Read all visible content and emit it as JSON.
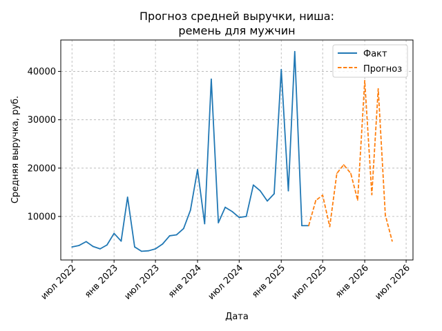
{
  "chart_data": {
    "type": "line",
    "title_line1": "Прогноз средней выручки, ниша:",
    "title_line2": "ремень для мужчин",
    "xlabel": "Дата",
    "ylabel": "Средняя выручка, руб.",
    "x_ticks": [
      {
        "date": "2022-07-01",
        "label": "июл 2022"
      },
      {
        "date": "2023-01-01",
        "label": "янв 2023"
      },
      {
        "date": "2023-07-01",
        "label": "июл 2023"
      },
      {
        "date": "2024-01-01",
        "label": "янв 2024"
      },
      {
        "date": "2024-07-01",
        "label": "июл 2024"
      },
      {
        "date": "2025-01-01",
        "label": "янв 2025"
      },
      {
        "date": "2025-07-01",
        "label": "июл 2025"
      },
      {
        "date": "2026-01-01",
        "label": "янв 2026"
      },
      {
        "date": "2026-07-01",
        "label": "июл 2026"
      }
    ],
    "y_ticks": [
      {
        "value": 10000,
        "label": "10000"
      },
      {
        "value": 20000,
        "label": "20000"
      },
      {
        "value": 30000,
        "label": "30000"
      },
      {
        "value": 40000,
        "label": "40000"
      }
    ],
    "xlim": [
      "2022-05-13",
      "2026-07-31"
    ],
    "ylim": [
      1000,
      46500
    ],
    "grid": true,
    "legend_position": "top-right",
    "series": [
      {
        "name": "Факт",
        "color": "#1f77b4",
        "style": "solid",
        "points": [
          {
            "x": "2022-07-01",
            "y": 3700
          },
          {
            "x": "2022-08-01",
            "y": 4000
          },
          {
            "x": "2022-09-01",
            "y": 4800
          },
          {
            "x": "2022-10-01",
            "y": 3800
          },
          {
            "x": "2022-11-01",
            "y": 3300
          },
          {
            "x": "2022-12-01",
            "y": 4100
          },
          {
            "x": "2023-01-01",
            "y": 6500
          },
          {
            "x": "2023-02-01",
            "y": 4900
          },
          {
            "x": "2023-03-01",
            "y": 14000
          },
          {
            "x": "2023-04-01",
            "y": 3700
          },
          {
            "x": "2023-05-01",
            "y": 2800
          },
          {
            "x": "2023-06-01",
            "y": 2900
          },
          {
            "x": "2023-07-01",
            "y": 3300
          },
          {
            "x": "2023-08-01",
            "y": 4300
          },
          {
            "x": "2023-09-01",
            "y": 6000
          },
          {
            "x": "2023-10-01",
            "y": 6200
          },
          {
            "x": "2023-11-01",
            "y": 7500
          },
          {
            "x": "2023-12-01",
            "y": 11300
          },
          {
            "x": "2024-01-01",
            "y": 19700
          },
          {
            "x": "2024-02-01",
            "y": 8500
          },
          {
            "x": "2024-03-01",
            "y": 38400
          },
          {
            "x": "2024-04-01",
            "y": 8700
          },
          {
            "x": "2024-05-01",
            "y": 11900
          },
          {
            "x": "2024-06-01",
            "y": 11000
          },
          {
            "x": "2024-07-01",
            "y": 9800
          },
          {
            "x": "2024-08-01",
            "y": 10000
          },
          {
            "x": "2024-09-01",
            "y": 16500
          },
          {
            "x": "2024-10-01",
            "y": 15300
          },
          {
            "x": "2024-11-01",
            "y": 13200
          },
          {
            "x": "2024-12-01",
            "y": 14700
          },
          {
            "x": "2025-01-01",
            "y": 40400
          },
          {
            "x": "2025-02-01",
            "y": 15300
          },
          {
            "x": "2025-03-01",
            "y": 44100
          },
          {
            "x": "2025-04-01",
            "y": 8100
          },
          {
            "x": "2025-05-01",
            "y": 8100
          }
        ]
      },
      {
        "name": "Прогноз",
        "color": "#ff7f0e",
        "style": "dashed",
        "points": [
          {
            "x": "2025-05-01",
            "y": 8100
          },
          {
            "x": "2025-06-01",
            "y": 13300
          },
          {
            "x": "2025-07-01",
            "y": 14400
          },
          {
            "x": "2025-08-01",
            "y": 7900
          },
          {
            "x": "2025-09-01",
            "y": 18900
          },
          {
            "x": "2025-10-01",
            "y": 20700
          },
          {
            "x": "2025-11-01",
            "y": 18900
          },
          {
            "x": "2025-12-01",
            "y": 13400
          },
          {
            "x": "2026-01-01",
            "y": 38100
          },
          {
            "x": "2026-02-01",
            "y": 14500
          },
          {
            "x": "2026-03-01",
            "y": 36400
          },
          {
            "x": "2026-04-01",
            "y": 10300
          },
          {
            "x": "2026-05-01",
            "y": 4900
          }
        ]
      }
    ]
  }
}
